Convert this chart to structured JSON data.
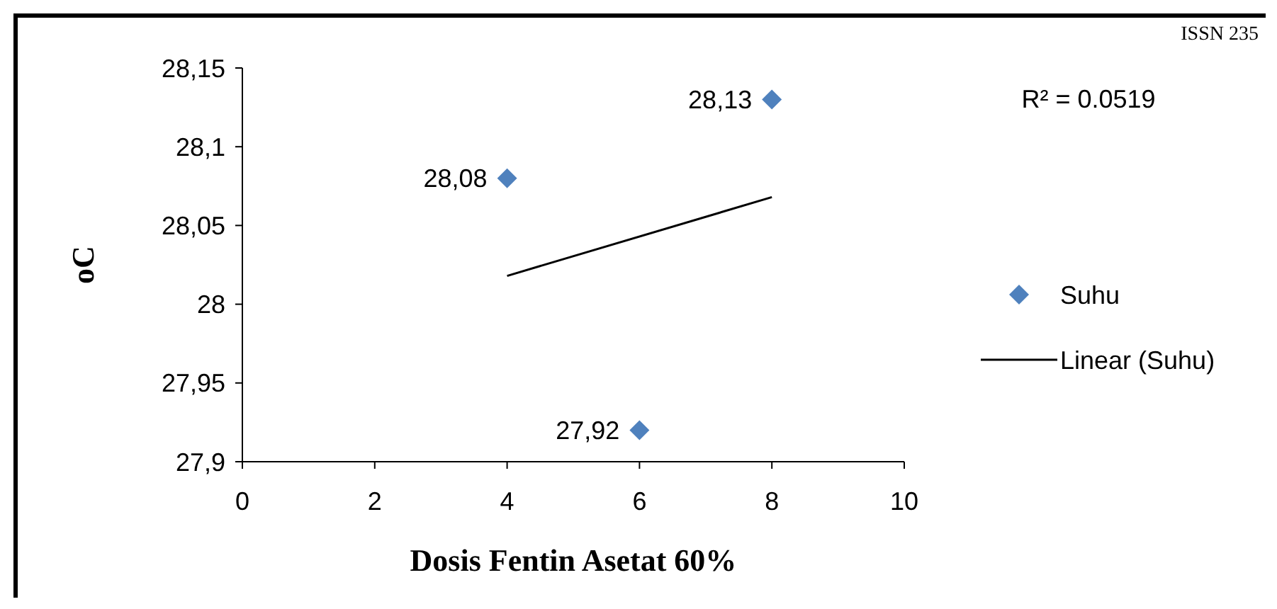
{
  "chart_data": {
    "type": "scatter",
    "xlabel": "Dosis Fentin Asetat 60%",
    "ylabel": "oC",
    "xlim": [
      0,
      10
    ],
    "xticks": [
      0,
      2,
      4,
      6,
      8,
      10
    ],
    "ylim": [
      27.9,
      28.15
    ],
    "yticks": [
      {
        "value": 27.9,
        "label": "27,9"
      },
      {
        "value": 27.95,
        "label": "27,95"
      },
      {
        "value": 28,
        "label": "28"
      },
      {
        "value": 28.05,
        "label": "28,05"
      },
      {
        "value": 28.1,
        "label": "28,1"
      },
      {
        "value": 28.15,
        "label": "28,15"
      }
    ],
    "grid": false,
    "legend": "right",
    "annotations": [
      "R² = 0.0519",
      "ISSN 235"
    ],
    "series": [
      {
        "name": "Suhu",
        "marker": "diamond",
        "color": "#4f81bd",
        "x": [
          4,
          6,
          8
        ],
        "values": [
          28.08,
          27.92,
          28.13
        ],
        "value_labels": [
          "28,08",
          "27,92",
          "28,13"
        ]
      },
      {
        "name": "Linear (Suhu)",
        "type": "line",
        "color": "#000000",
        "x": [
          4,
          8
        ],
        "values": [
          28.018,
          28.068
        ]
      }
    ]
  }
}
